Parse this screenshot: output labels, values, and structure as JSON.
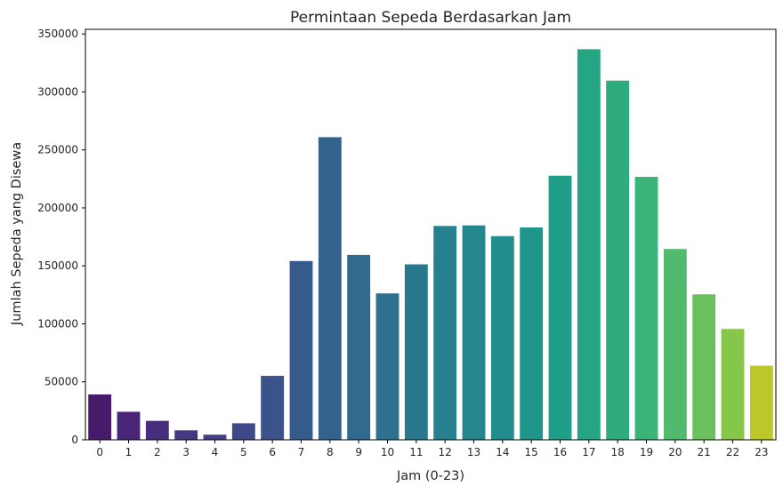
{
  "chart_data": {
    "type": "bar",
    "title": "Permintaan Sepeda Berdasarkan Jam",
    "xlabel": "Jam (0-23)",
    "ylabel": "Jumlah Sepeda yang Disewa",
    "categories": [
      "0",
      "1",
      "2",
      "3",
      "4",
      "5",
      "6",
      "7",
      "8",
      "9",
      "10",
      "11",
      "12",
      "13",
      "14",
      "15",
      "16",
      "17",
      "18",
      "19",
      "20",
      "21",
      "22",
      "23"
    ],
    "values": [
      39130,
      24164,
      16352,
      8174,
      4428,
      14261,
      55132,
      154171,
      261001,
      159438,
      126257,
      151320,
      184414,
      184919,
      175652,
      183149,
      227748,
      336860,
      309772,
      226789,
      164550,
      125445,
      95612,
      63941
    ],
    "ylim": [
      0,
      354000
    ],
    "yticks": [
      0,
      50000,
      100000,
      150000,
      200000,
      250000,
      300000,
      350000
    ],
    "palette": "viridis",
    "colors": [
      "#481a6c",
      "#482576",
      "#472f7d",
      "#453882",
      "#424186",
      "#3e4989",
      "#3b528b",
      "#375a8c",
      "#33628d",
      "#306a8e",
      "#2d718e",
      "#2a788e",
      "#27808e",
      "#24878e",
      "#218e8d",
      "#1f958b",
      "#1f9e89",
      "#25a584",
      "#2fac7e",
      "#3bb47a",
      "#52ba6c",
      "#6ac05f",
      "#86c649",
      "#bbc72b"
    ],
    "grid": false,
    "legend": "none"
  }
}
